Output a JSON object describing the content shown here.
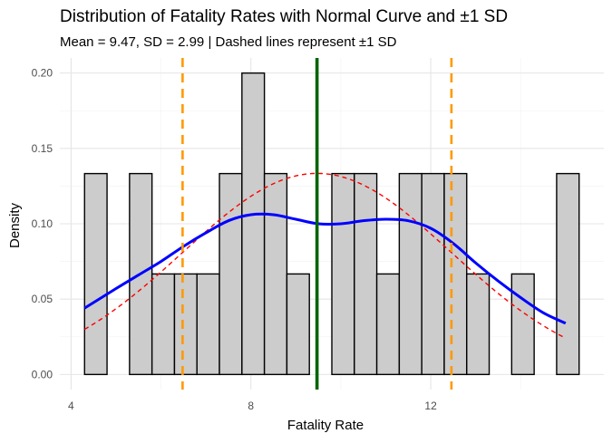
{
  "chart_data": {
    "type": "bar",
    "title": "Distribution of Fatality Rates with Normal Curve and ±1 SD",
    "subtitle": "Mean = 9.47, SD = 2.99 | Dashed lines represent ±1 SD",
    "xlabel": "Fatality Rate",
    "ylabel": "Density",
    "xlim": [
      3.75,
      15.85
    ],
    "ylim": [
      -0.01,
      0.21
    ],
    "x_ticks": [
      4,
      8,
      12
    ],
    "x_tick_labels": [
      "4",
      "8",
      "12"
    ],
    "y_ticks": [
      0.0,
      0.05,
      0.1,
      0.15,
      0.2
    ],
    "y_tick_labels": [
      "0.00",
      "0.05",
      "0.10",
      "0.15",
      "0.20"
    ],
    "grid": true,
    "histogram": {
      "bin_width": 0.5,
      "bin_starts": [
        4.3,
        4.8,
        5.3,
        5.8,
        6.3,
        6.8,
        7.3,
        7.8,
        8.3,
        8.8,
        9.3,
        9.8,
        10.3,
        10.8,
        11.3,
        11.8,
        12.3,
        12.8,
        13.3,
        13.8,
        14.3,
        14.8
      ],
      "density": [
        0.1333,
        0,
        0.1333,
        0.0667,
        0.0667,
        0.0667,
        0.1333,
        0.2,
        0.1333,
        0.0667,
        0,
        0.1333,
        0.1333,
        0.0667,
        0.1333,
        0.1333,
        0.1333,
        0.0667,
        0,
        0.0667,
        0,
        0.1333
      ],
      "fill": "#cccccc",
      "stroke": "#000000"
    },
    "kde_curve": {
      "color": "#0000ff",
      "x": [
        4.3,
        5.0,
        5.5,
        6.0,
        6.5,
        7.0,
        7.5,
        8.0,
        8.5,
        9.0,
        9.5,
        10.0,
        10.5,
        11.0,
        11.5,
        12.0,
        12.5,
        13.0,
        13.5,
        14.0,
        14.5,
        15.0
      ],
      "y": [
        0.044,
        0.057,
        0.066,
        0.075,
        0.085,
        0.094,
        0.102,
        0.106,
        0.106,
        0.103,
        0.1,
        0.1,
        0.102,
        0.103,
        0.102,
        0.097,
        0.087,
        0.074,
        0.062,
        0.051,
        0.041,
        0.034
      ]
    },
    "normal_curve": {
      "color": "#ff0000",
      "style": "dashed",
      "mean": 9.47,
      "sd": 2.99,
      "x_range": [
        4.3,
        15.0
      ]
    },
    "mean_line": {
      "x": 9.47,
      "color": "#006400"
    },
    "sd_lines": {
      "x": [
        6.48,
        12.46
      ],
      "color": "#ff9900",
      "style": "dashed"
    }
  }
}
